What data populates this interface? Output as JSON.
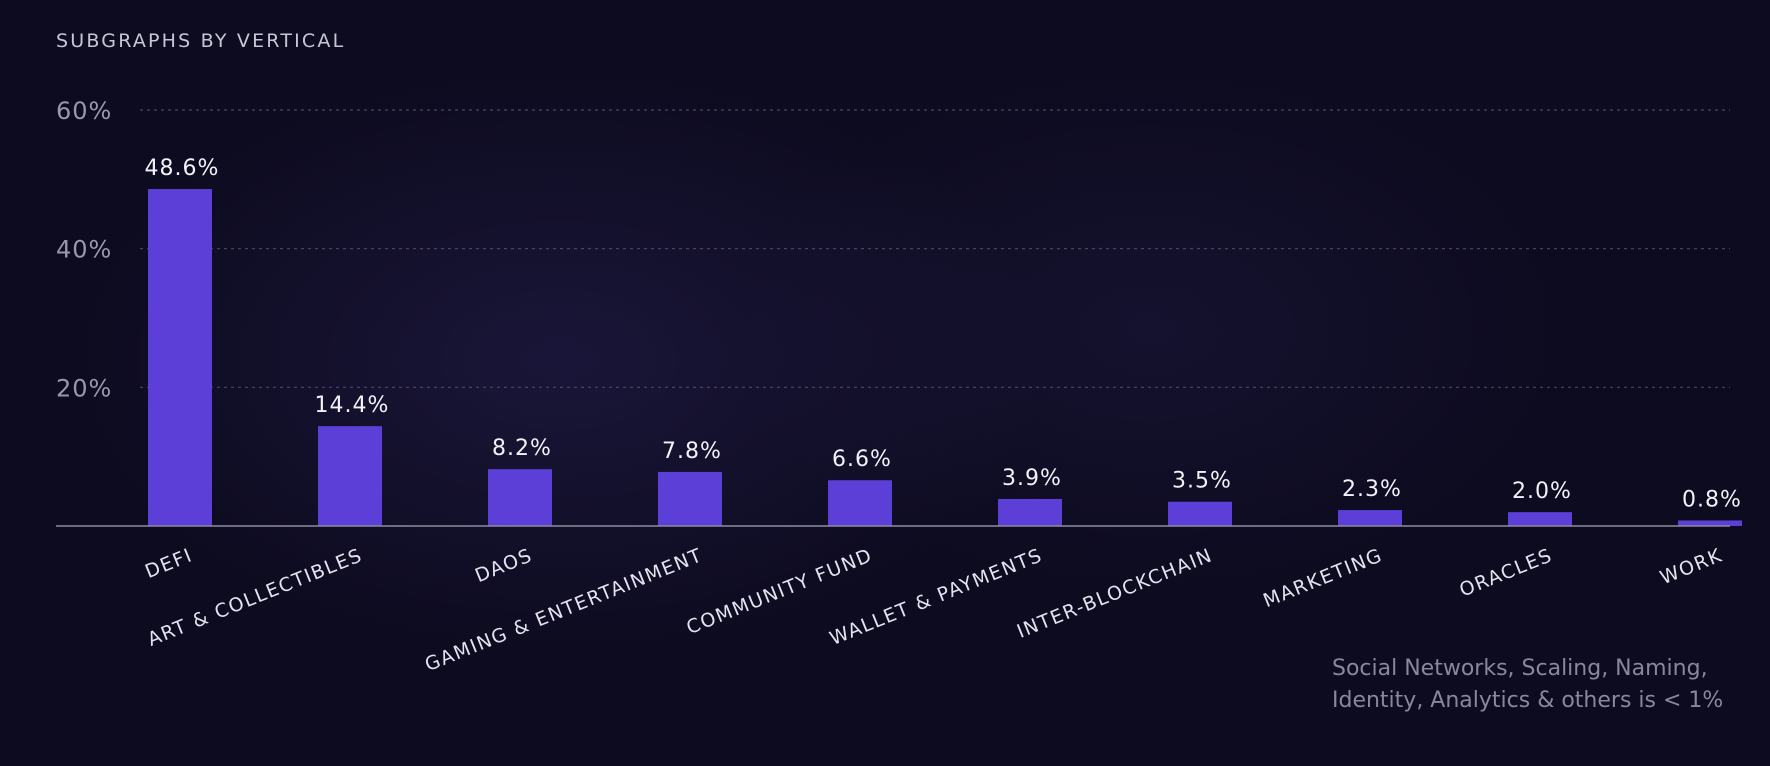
{
  "chart_data": {
    "type": "bar",
    "title": "SUBGRAPHS BY VERTICAL",
    "categories": [
      "DEFI",
      "ART & COLLECTIBLES",
      "DAOS",
      "GAMING & ENTERTAINMENT",
      "COMMUNITY FUND",
      "WALLET & PAYMENTS",
      "INTER-BLOCKCHAIN",
      "MARKETING",
      "ORACLES",
      "WORK"
    ],
    "values": [
      48.6,
      14.4,
      8.2,
      7.8,
      6.6,
      3.9,
      3.5,
      2.3,
      2.0,
      0.8
    ],
    "data_labels": [
      "48.6%",
      "14.4%",
      "8.2%",
      "7.8%",
      "6.6%",
      "3.9%",
      "3.5%",
      "2.3%",
      "2.0%",
      "0.8%"
    ],
    "y_ticks": [
      20,
      40,
      60
    ],
    "y_tick_labels": [
      "20%",
      "40%",
      "60%"
    ],
    "ylim": [
      0,
      60
    ],
    "grid": true,
    "xlabel": "",
    "ylabel": "",
    "bar_color": "#5b3fd6",
    "footnote": [
      "Social Networks, Scaling, Naming,",
      "Identity, Analytics & others is < 1%"
    ]
  }
}
